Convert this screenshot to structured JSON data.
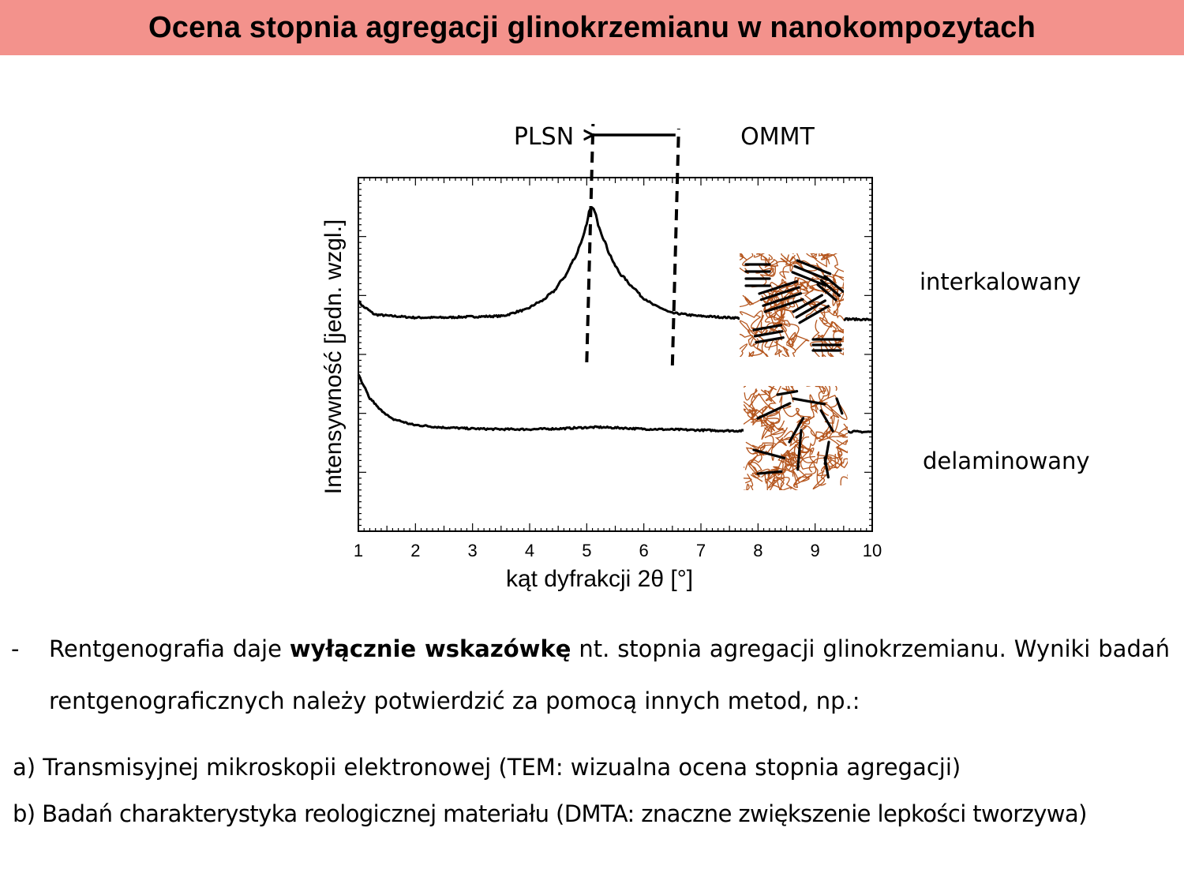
{
  "slide": {
    "title": "Ocena stopnia agregacji glinokrzemianu w nanokompozytach",
    "title_bg": "#f3928c"
  },
  "chart_data": {
    "type": "line",
    "xlabel": "kąt dyfrakcji 2θ [°]",
    "ylabel": "Intensywność [jedn. wzgl.]",
    "xlim": [
      1,
      10
    ],
    "x_ticks": [
      1,
      2,
      3,
      4,
      5,
      6,
      7,
      8,
      9,
      10
    ],
    "y_tick_labels": [],
    "series": [
      {
        "name": "interkalowany",
        "x": [
          1.0,
          1.1,
          1.3,
          1.6,
          2.0,
          2.5,
          3.0,
          3.5,
          3.9,
          4.2,
          4.4,
          4.6,
          4.8,
          4.9,
          5.0,
          5.05,
          5.1,
          5.15,
          5.2,
          5.3,
          5.4,
          5.5,
          5.6,
          5.8,
          6.0,
          6.2,
          6.5,
          7.0,
          7.5,
          8.0,
          8.5,
          9.0,
          9.5,
          10.0
        ],
        "y": [
          0.78,
          0.76,
          0.735,
          0.73,
          0.725,
          0.725,
          0.728,
          0.73,
          0.75,
          0.78,
          0.81,
          0.86,
          0.93,
          0.98,
          1.04,
          1.09,
          1.1,
          1.08,
          1.04,
          0.99,
          0.94,
          0.9,
          0.87,
          0.83,
          0.79,
          0.765,
          0.74,
          0.73,
          0.725,
          0.72,
          0.72,
          0.72,
          0.72,
          0.718
        ]
      },
      {
        "name": "delaminowany",
        "x": [
          1.0,
          1.1,
          1.2,
          1.4,
          1.6,
          2.0,
          2.5,
          3.0,
          3.5,
          4.0,
          4.5,
          5.0,
          5.2,
          5.5,
          6.0,
          6.5,
          7.0,
          7.5,
          8.0,
          8.5,
          9.0,
          9.5,
          10.0
        ],
        "y": [
          0.53,
          0.49,
          0.45,
          0.41,
          0.38,
          0.36,
          0.352,
          0.348,
          0.346,
          0.346,
          0.348,
          0.352,
          0.353,
          0.351,
          0.347,
          0.345,
          0.343,
          0.341,
          0.34,
          0.339,
          0.338,
          0.338,
          0.337
        ]
      }
    ],
    "annotations": {
      "left_label": "PLSN",
      "right_label": "OMMT",
      "dashed_lines_x": [
        5.0,
        6.5
      ],
      "arrow": "from OMMT to PLSN"
    },
    "curve_labels": [
      "interkalowany",
      "delaminowany"
    ],
    "colors": {
      "curve": "#000000",
      "polymer_chains": "#b5561e",
      "clay_layers": "#000000"
    },
    "grid": false
  },
  "text": {
    "bullet": "-",
    "para_part1": "Rentgenografia daje ",
    "para_bold": "wyłącznie wskazówkę",
    "para_part2": " nt. stopnia agregacji glinokrzemianu. Wyniki badań rentgenograficznych należy potwierdzić za pomocą innych metod, np.:",
    "item_a": "a) Transmisyjnej mikroskopii elektronowej (TEM: wizualna ocena stopnia agregacji)",
    "item_b": "b) Badań charakterystyka reologicznej materiału (DMTA: znaczne zwiększenie lepkości tworzywa)"
  }
}
